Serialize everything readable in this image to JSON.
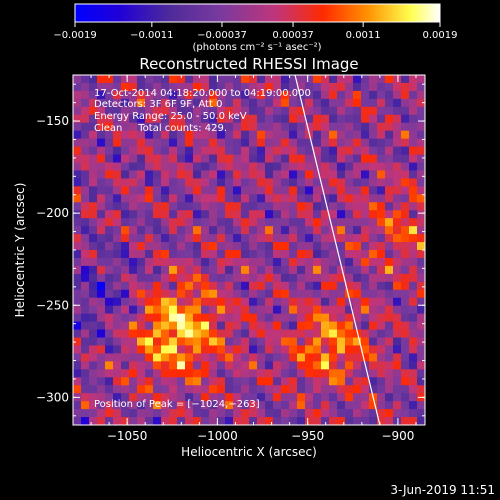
{
  "chart_data": {
    "type": "heatmap",
    "title": "Reconstructed RHESSI Image",
    "xlabel": "Heliocentric X (arcsec)",
    "ylabel": "Heliocentric Y (arcsec)",
    "xlim": [
      -1080,
      -885
    ],
    "ylim": [
      -315,
      -125
    ],
    "xticks": [
      {
        "value": -1050,
        "label": "−1050"
      },
      {
        "value": -1000,
        "label": "−1000"
      },
      {
        "value": -950,
        "label": "−950"
      },
      {
        "value": -900,
        "label": "−900"
      }
    ],
    "yticks": [
      {
        "value": -150,
        "label": "−150"
      },
      {
        "value": -200,
        "label": "−200"
      },
      {
        "value": -250,
        "label": "−250"
      },
      {
        "value": -300,
        "label": "−300"
      }
    ],
    "colorbar": {
      "range": [
        -0.0019,
        0.0019
      ],
      "ticks": [
        {
          "value": -0.0019,
          "label": "−0.0019"
        },
        {
          "value": -0.0011,
          "label": "−0.0011"
        },
        {
          "value": -0.00037,
          "label": "−0.00037"
        },
        {
          "value": 0.00037,
          "label": "0.00037"
        },
        {
          "value": 0.0011,
          "label": "0.0011"
        },
        {
          "value": 0.0019,
          "label": "0.0019"
        }
      ],
      "unit_label": "(photons cm⁻² s⁻¹ asec⁻²)"
    },
    "annotations": [
      "17-Oct-2014 04:18:20.000 to 04:19:00.000",
      "Detectors: 3F 6F 9F, Att 0",
      "Energy Range: 25.0 - 50.0 keV",
      "Clean     Total counts: 429.",
      "Position of Peak = [−1024,−263]"
    ],
    "peak": {
      "x": -1024,
      "y": -263
    },
    "limb_line": [
      [
        -957,
        -125
      ],
      [
        -910,
        -315
      ]
    ],
    "grid": false,
    "colors": {
      "background": "#000000",
      "axes": "#ffffff",
      "colormap": [
        "#0000ff",
        "#2000d8",
        "#4e2b9a",
        "#7a3a9e",
        "#c0357a",
        "#ff2a00",
        "#ff9000",
        "#ffff50",
        "#ffffff"
      ]
    }
  },
  "footer": {
    "date": "3-Jun-2019 11:51"
  }
}
